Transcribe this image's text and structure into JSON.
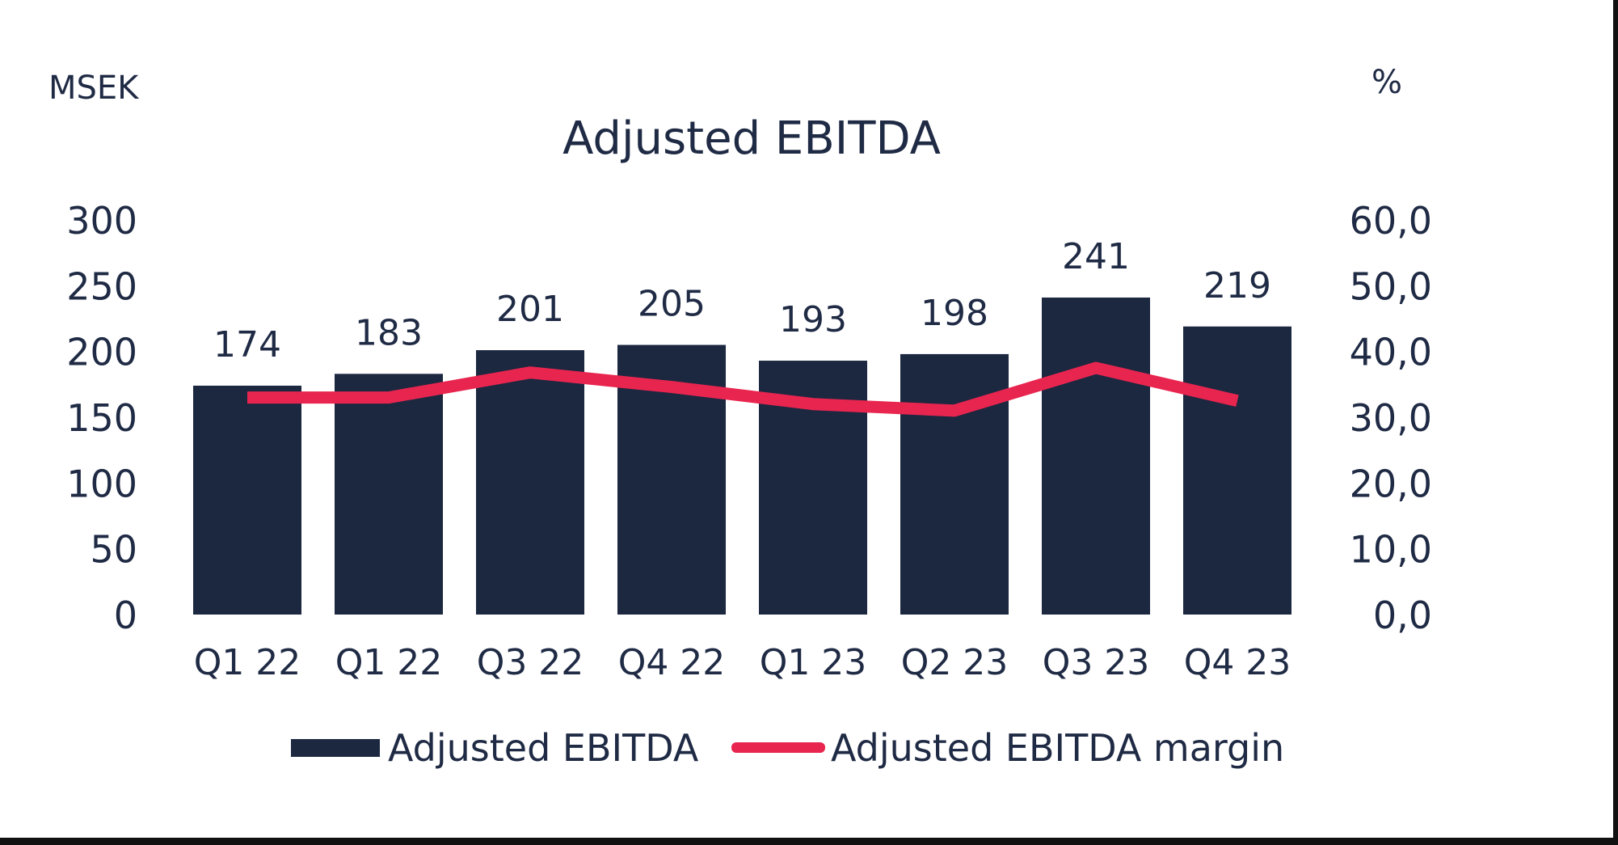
{
  "chart_data": {
    "type": "bar",
    "title": "Adjusted EBITDA",
    "y_left_unit": "MSEK",
    "y_right_unit": "%",
    "categories": [
      "Q1 22",
      "Q1 22",
      "Q3 22",
      "Q4 22",
      "Q1 23",
      "Q2 23",
      "Q3 23",
      "Q4 23"
    ],
    "series": [
      {
        "name": "Adjusted EBITDA",
        "type": "bar",
        "axis": "left",
        "values": [
          174,
          183,
          201,
          205,
          193,
          198,
          241,
          219
        ],
        "color": "#1c2740"
      },
      {
        "name": "Adjusted EBITDA margin",
        "type": "line",
        "axis": "right",
        "values": [
          33.0,
          33.0,
          36.8,
          34.6,
          32.0,
          31.0,
          37.5,
          32.5
        ],
        "color": "#e8254f"
      }
    ],
    "y_left": {
      "ticks": [
        "0",
        "50",
        "100",
        "150",
        "200",
        "250",
        "300"
      ],
      "min": 0,
      "max": 300
    },
    "y_right": {
      "ticks": [
        "0,0",
        "10,0",
        "20,0",
        "30,0",
        "40,0",
        "50,0",
        "60,0"
      ],
      "min": 0,
      "max": 60
    },
    "legend_position": "bottom",
    "grid": false
  }
}
